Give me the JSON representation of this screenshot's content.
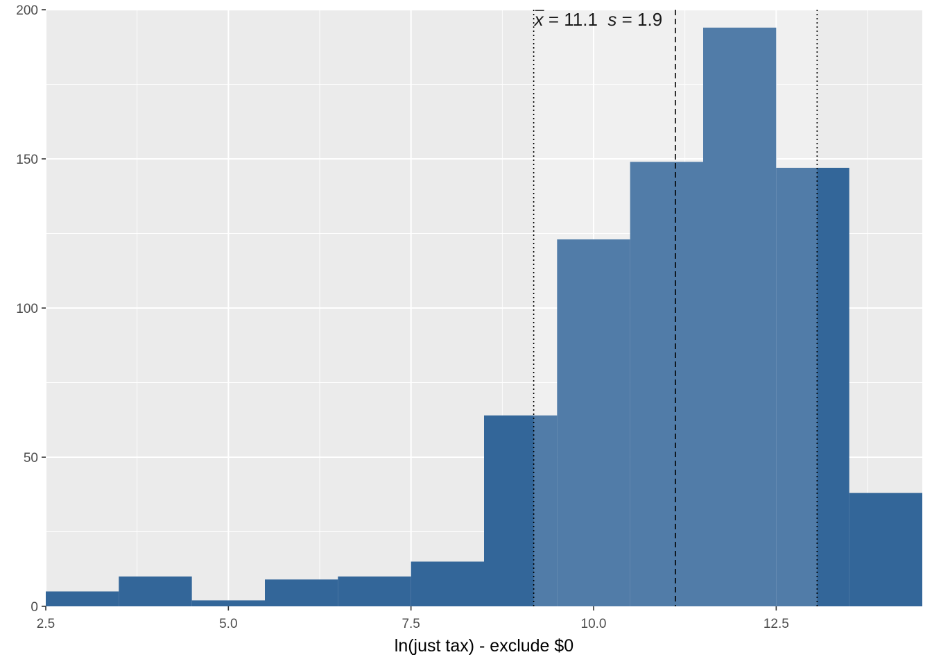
{
  "chart_data": {
    "type": "bar",
    "xlabel": "ln(just tax) - exclude $0",
    "ylabel": "",
    "xlim": [
      2.5,
      14.5
    ],
    "ylim": [
      0,
      200
    ],
    "x_ticks": [
      2.5,
      5.0,
      7.5,
      10.0,
      12.5
    ],
    "x_tick_labels": [
      "2.5",
      "5.0",
      "7.5",
      "10.0",
      "12.5"
    ],
    "y_ticks": [
      0,
      50,
      100,
      150,
      200
    ],
    "y_tick_labels": [
      "0",
      "50",
      "100",
      "150",
      "200"
    ],
    "bin_width": 1,
    "bins": [
      {
        "start": 2.5,
        "end": 3.5,
        "count": 5
      },
      {
        "start": 3.5,
        "end": 4.5,
        "count": 10
      },
      {
        "start": 4.5,
        "end": 5.5,
        "count": 2
      },
      {
        "start": 5.5,
        "end": 6.5,
        "count": 9
      },
      {
        "start": 6.5,
        "end": 7.5,
        "count": 10
      },
      {
        "start": 7.5,
        "end": 8.5,
        "count": 15
      },
      {
        "start": 8.5,
        "end": 9.5,
        "count": 64
      },
      {
        "start": 9.5,
        "end": 10.5,
        "count": 123
      },
      {
        "start": 10.5,
        "end": 11.5,
        "count": 149
      },
      {
        "start": 11.5,
        "end": 12.5,
        "count": 194
      },
      {
        "start": 12.5,
        "end": 13.5,
        "count": 147
      },
      {
        "start": 13.5,
        "end": 14.5,
        "count": 38
      }
    ],
    "mean": 11.1,
    "sd": 1.9,
    "mean_line_x": 11.12,
    "sd_band": [
      9.18,
      13.06
    ],
    "annotation": {
      "mean_symbol": "x",
      "mean_text": " = 11.1  ",
      "sd_symbol": "s",
      "sd_text": " = 1.9"
    },
    "grid": true,
    "colors": {
      "panel_bg": "#EBEBEB",
      "grid_major": "#FFFFFF",
      "bar": "#336699",
      "sd_band_fill": "#FFFFFF",
      "sd_band_opacity": 0.15,
      "ref_line": "#000000",
      "tick_label": "#4D4D4D"
    }
  }
}
